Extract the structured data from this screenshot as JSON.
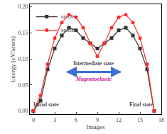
{
  "chart_data": {
    "type": "line",
    "x_label": "Images",
    "y_label": "Energy (eV/atom)",
    "x": [
      0,
      1,
      2,
      3,
      4,
      5,
      6,
      7,
      8,
      9,
      10,
      11,
      12,
      13,
      14,
      15,
      16,
      17
    ],
    "series": [
      {
        "name": "MnOCl",
        "color": "#333333",
        "marker": "square",
        "values": [
          0.0,
          0.02,
          0.08,
          0.12,
          0.145,
          0.16,
          0.155,
          0.14,
          0.13,
          0.12,
          0.13,
          0.14,
          0.155,
          0.16,
          0.145,
          0.12,
          0.08,
          0.0
        ]
      },
      {
        "name": "MnOBr",
        "color": "#ff2a2a",
        "marker": "circle",
        "values": [
          0.0,
          0.03,
          0.09,
          0.14,
          0.17,
          0.185,
          0.18,
          0.16,
          0.13,
          0.105,
          0.13,
          0.16,
          0.18,
          0.185,
          0.17,
          0.14,
          0.09,
          0.0
        ]
      }
    ],
    "xlim": [
      -0.5,
      18
    ],
    "xticks": [
      0,
      3,
      6,
      9,
      12,
      15,
      18
    ],
    "ylim": [
      -0.006,
      0.205
    ],
    "yticks": [
      {
        "value": 0,
        "label": "0.00"
      },
      {
        "value": 0.05,
        "label": "0.05"
      },
      {
        "value": 0.1,
        "label": "0.10"
      },
      {
        "value": 0.15,
        "label": "0.15"
      },
      {
        "value": 0.2,
        "label": "0.20"
      }
    ],
    "legend": "top left",
    "annotations": [
      "Initial state",
      "Intermediate state",
      "Final state",
      "Magnetoelastic"
    ]
  }
}
